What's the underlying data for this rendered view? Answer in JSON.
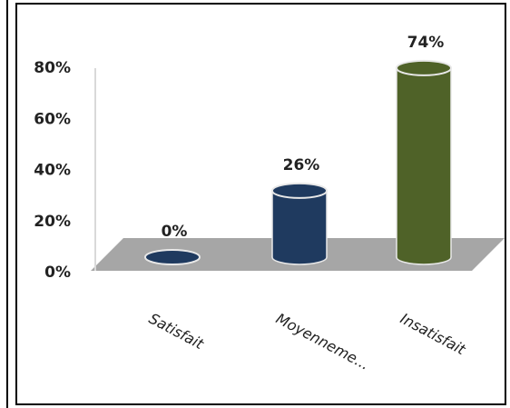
{
  "chart_data": {
    "type": "bar3d",
    "categories": [
      "Satisfait",
      "Moyenneme...",
      "Insatisfait"
    ],
    "values": [
      0,
      26,
      74
    ],
    "value_labels": [
      "0%",
      "26%",
      "74%"
    ],
    "colors": [
      "#1f3a5f",
      "#1f3a5f",
      "#4f6228"
    ],
    "ylim": [
      0,
      80
    ],
    "yticks": [
      {
        "value": 0,
        "label": "0%"
      },
      {
        "value": 20,
        "label": "20%"
      },
      {
        "value": 40,
        "label": "40%"
      },
      {
        "value": 60,
        "label": "60%"
      },
      {
        "value": 80,
        "label": "80%"
      }
    ],
    "grid": false
  }
}
